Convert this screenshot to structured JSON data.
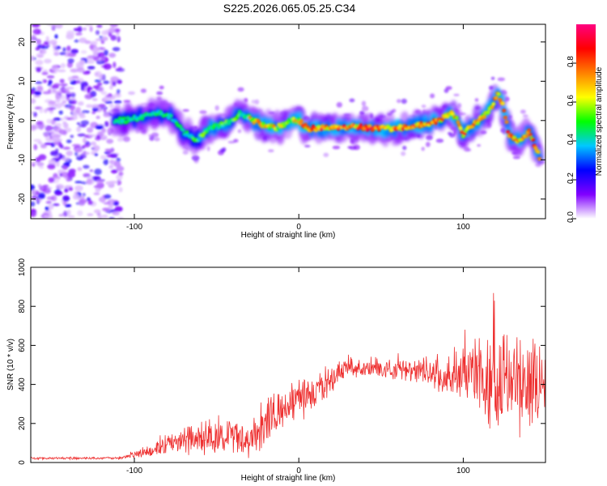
{
  "title": "S225.2026.065.05.25.C34",
  "chart_data": [
    {
      "type": "heatmap",
      "name": "spectrogram",
      "xlabel": "Height of straight line (km)",
      "ylabel": "Frequency (Hz)",
      "xlim": [
        -163,
        150
      ],
      "ylim": [
        -25,
        24.5
      ],
      "xticks": [
        -100,
        0,
        100
      ],
      "xtick_labels": [
        "-100",
        "0",
        "100"
      ],
      "yticks": [
        -20,
        -10,
        0,
        10,
        20
      ],
      "ytick_labels": [
        "-20",
        "-10",
        "0",
        "10",
        "20"
      ],
      "ridge": {
        "x": [
          -113,
          -105,
          -95,
          -85,
          -78,
          -70,
          -62,
          -55,
          -45,
          -35,
          -28,
          -22,
          -15,
          -8,
          -4,
          0,
          5,
          15,
          30,
          45,
          60,
          75,
          85,
          93,
          97,
          100,
          103,
          110,
          118,
          121,
          124,
          128,
          133,
          140,
          147
        ],
        "y": [
          0,
          0,
          1,
          2,
          1,
          -3,
          -5,
          -2,
          -1,
          2,
          0,
          -1,
          -2,
          -1,
          0,
          0,
          -2,
          -2,
          -1.5,
          -2,
          -2,
          -1,
          0,
          2,
          0,
          -4,
          -2,
          0,
          4,
          7,
          4,
          -4,
          -5,
          -3,
          -10
        ]
      },
      "colorbar": {
        "label": "Normalized spectral amplitude",
        "range": [
          0,
          1
        ],
        "ticks": [
          "0.0",
          "0.2",
          "0.4",
          "0.6",
          "0.8"
        ],
        "tick_values": [
          0.0,
          0.2,
          0.4,
          0.6,
          0.8
        ],
        "colors": [
          "#ffffff",
          "#8000ff",
          "#0000ff",
          "#00c8ff",
          "#00ff00",
          "#ffff00",
          "#ff8000",
          "#ff0000",
          "#ff0080"
        ]
      }
    },
    {
      "type": "line",
      "name": "snr",
      "xlabel": "Height of straight line (km)",
      "ylabel": "SNR (10 * v/v)",
      "xlim": [
        -163,
        150
      ],
      "ylim": [
        0,
        1000
      ],
      "xticks": [
        -100,
        0,
        100
      ],
      "xtick_labels": [
        "-100",
        "0",
        "100"
      ],
      "yticks": [
        0,
        200,
        400,
        600,
        800,
        1000
      ],
      "ytick_labels": [
        "0",
        "200",
        "400",
        "600",
        "800",
        "1000"
      ],
      "color": "#ee3030",
      "trend": {
        "x": [
          -163,
          -110,
          -100,
          -90,
          -80,
          -70,
          -60,
          -50,
          -40,
          -30,
          -22,
          -18,
          -10,
          0,
          10,
          20,
          25,
          30,
          50,
          70,
          90,
          100,
          110,
          120,
          130,
          140,
          150
        ],
        "y": [
          22,
          22,
          40,
          60,
          90,
          110,
          120,
          130,
          125,
          115,
          170,
          230,
          280,
          320,
          360,
          420,
          460,
          480,
          480,
          470,
          460,
          440,
          420,
          400,
          390,
          380,
          400
        ]
      },
      "spread": {
        "x": [
          -163,
          -110,
          -100,
          -80,
          -60,
          -40,
          -20,
          0,
          20,
          40,
          60,
          80,
          100,
          110,
          120,
          130,
          140,
          150
        ],
        "y": [
          5,
          5,
          15,
          40,
          70,
          70,
          90,
          80,
          50,
          35,
          40,
          60,
          130,
          170,
          220,
          210,
          180,
          170
        ]
      }
    }
  ]
}
